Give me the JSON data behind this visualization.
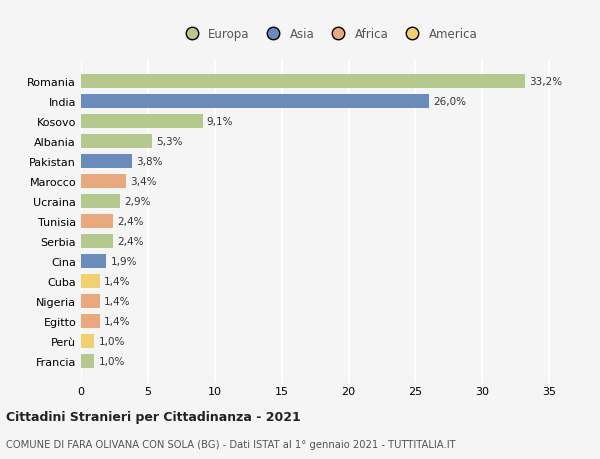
{
  "categories": [
    "Romania",
    "India",
    "Kosovo",
    "Albania",
    "Pakistan",
    "Marocco",
    "Ucraina",
    "Tunisia",
    "Serbia",
    "Cina",
    "Cuba",
    "Nigeria",
    "Egitto",
    "Perù",
    "Francia"
  ],
  "values": [
    33.2,
    26.0,
    9.1,
    5.3,
    3.8,
    3.4,
    2.9,
    2.4,
    2.4,
    1.9,
    1.4,
    1.4,
    1.4,
    1.0,
    1.0
  ],
  "labels": [
    "33,2%",
    "26,0%",
    "9,1%",
    "5,3%",
    "3,8%",
    "3,4%",
    "2,9%",
    "2,4%",
    "2,4%",
    "1,9%",
    "1,4%",
    "1,4%",
    "1,4%",
    "1,0%",
    "1,0%"
  ],
  "colors": [
    "#b5c98e",
    "#6b8cba",
    "#b5c98e",
    "#b5c98e",
    "#6b8cba",
    "#e8a97e",
    "#b5c98e",
    "#e8a97e",
    "#b5c98e",
    "#6b8cba",
    "#f0d070",
    "#e8a97e",
    "#e8a97e",
    "#f0d070",
    "#b5c98e"
  ],
  "continent_colors": {
    "Europa": "#b5c98e",
    "Asia": "#6b8cba",
    "Africa": "#e8a97e",
    "America": "#f0d070"
  },
  "xlim": [
    0,
    37
  ],
  "xticks": [
    0,
    5,
    10,
    15,
    20,
    25,
    30,
    35
  ],
  "title": "Cittadini Stranieri per Cittadinanza - 2021",
  "subtitle": "COMUNE DI FARA OLIVANA CON SOLA (BG) - Dati ISTAT al 1° gennaio 2021 - TUTTITALIA.IT",
  "bg_color": "#f5f5f5",
  "grid_color": "#ffffff",
  "bar_height": 0.7
}
